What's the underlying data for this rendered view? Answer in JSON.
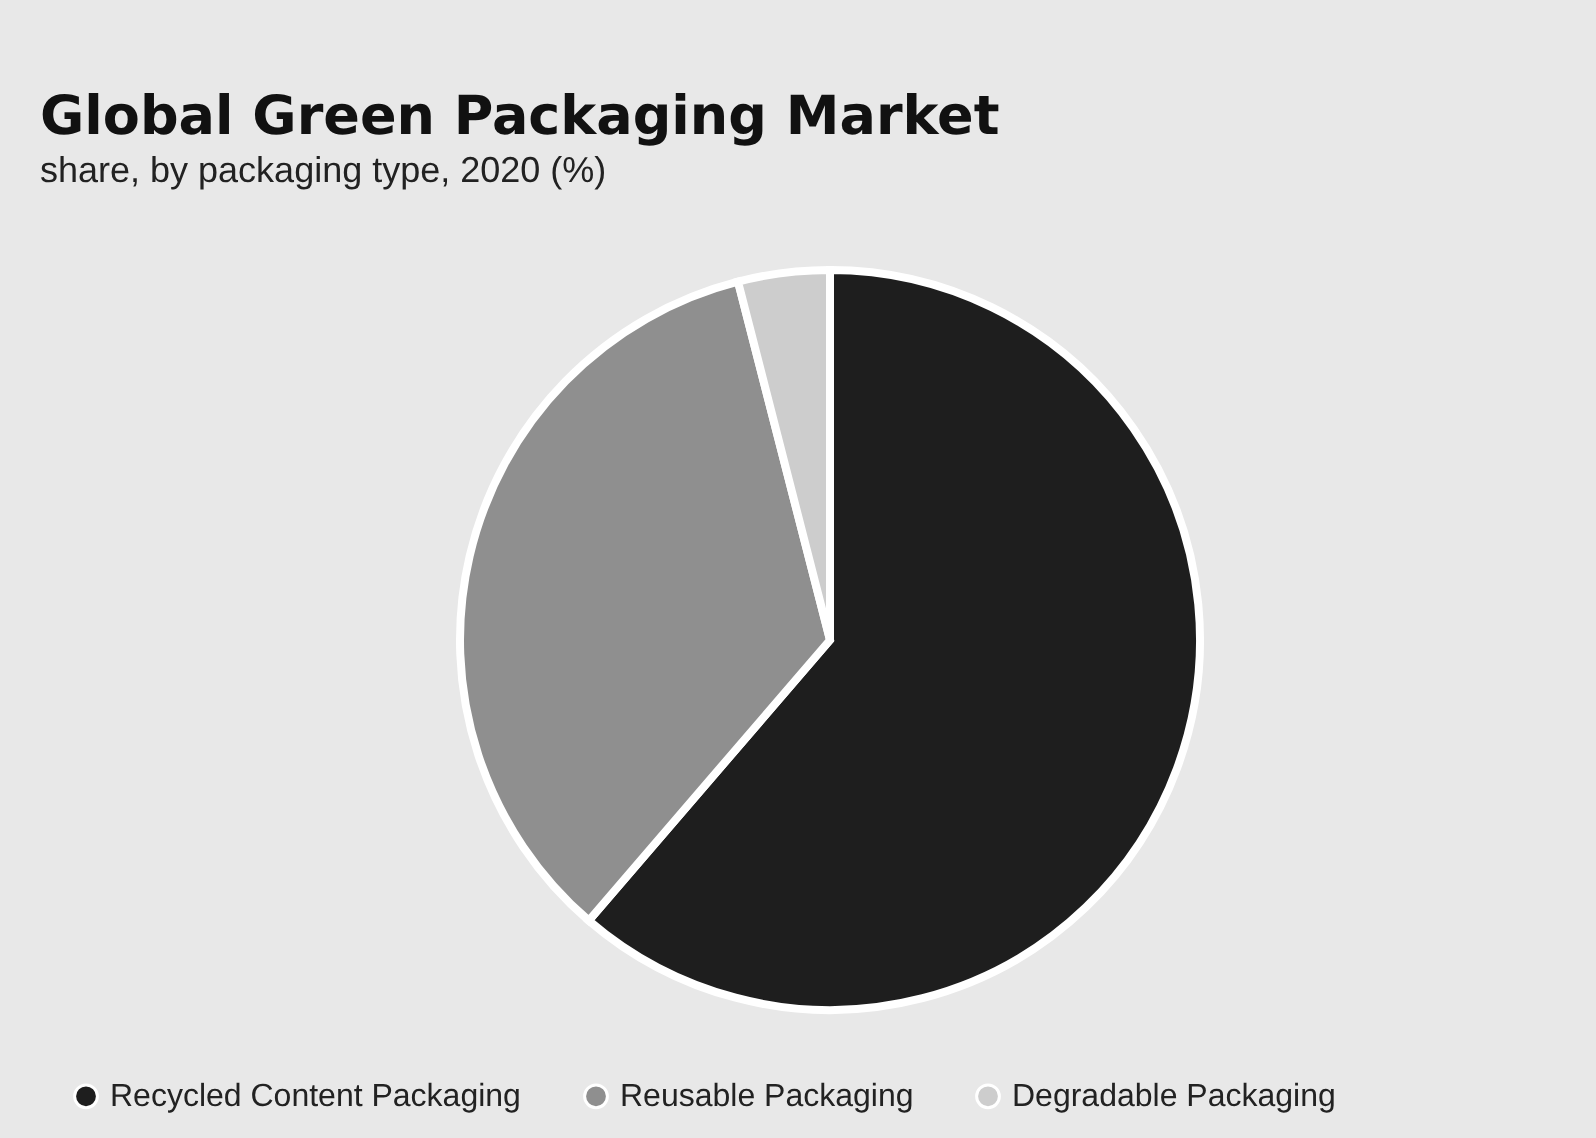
{
  "chart_data": {
    "type": "pie",
    "title": "Global Green Packaging Market",
    "subtitle": "share, by packaging type, 2020 (%)",
    "categories": [
      "Recycled Content Packaging",
      "Reusable Packaging",
      "Degradable Packaging"
    ],
    "values": [
      61.3,
      34.7,
      4.0
    ],
    "colors": [
      "#1e1e1e",
      "#8f8f8f",
      "#cdcdcd"
    ],
    "legend": "bottom"
  }
}
